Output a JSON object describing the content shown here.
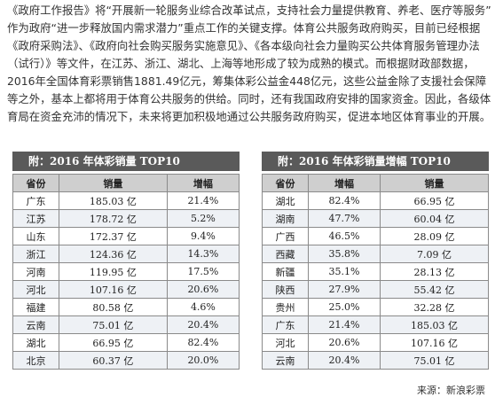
{
  "paragraph": "《政府工作报告》将“开展新一轮服务业综合改革试点，支持社会力量提供教育、养老、医疗等服务”作为政府“进一步释放国内需求潜力”重点工作的关键支撑。体育公共服务政府购买，目前已经根据《政府采购法》、《政府向社会购买服务实施意见》、《各本级向社会力量购买公共体育服务管理办法（试行）》等文件，在江苏、浙江、湖北、上海等地形成了较为成熟的模式。而根据财政部数据，2016年全国体育彩票销售1881.49亿元，筹集体彩公益金448亿元，这些公益金除了支援社会保障等之外，基本上都将用于体育公共服务的供给。同时，还有我国政府安排的国家资金。因此，各级体育局在资金充沛的情况下，未来将更加积极地通过公共服务政府购买，促进本地区体育事业的开展。",
  "tables": [
    {
      "title": "附：2016 年体彩销量 TOP10",
      "headers": [
        "省份",
        "销量",
        "增幅"
      ],
      "rows": [
        [
          "广东",
          "185.03 亿",
          "21.4%"
        ],
        [
          "江苏",
          "178.72 亿",
          "5.2%"
        ],
        [
          "山东",
          "172.37 亿",
          "9.4%"
        ],
        [
          "浙江",
          "124.36 亿",
          "14.3%"
        ],
        [
          "河南",
          "119.95 亿",
          "17.5%"
        ],
        [
          "河北",
          "107.16 亿",
          "20.6%"
        ],
        [
          "福建",
          "80.58 亿",
          "4.6%"
        ],
        [
          "云南",
          "75.01 亿",
          "20.4%"
        ],
        [
          "湖北",
          "66.95 亿",
          "82.4%"
        ],
        [
          "北京",
          "60.37 亿",
          "20.0%"
        ]
      ]
    },
    {
      "title": "附：2016 年体彩销量增幅 TOP10",
      "headers": [
        "省份",
        "增幅",
        "销量"
      ],
      "rows": [
        [
          "湖北",
          "82.4%",
          "66.95 亿"
        ],
        [
          "湖南",
          "47.7%",
          "60.04 亿"
        ],
        [
          "广西",
          "46.5%",
          "28.09 亿"
        ],
        [
          "西藏",
          "35.8%",
          "7.09 亿"
        ],
        [
          "新疆",
          "35.1%",
          "28.13 亿"
        ],
        [
          "陕西",
          "27.9%",
          "55.42 亿"
        ],
        [
          "贵州",
          "25.0%",
          "32.28 亿"
        ],
        [
          "广东",
          "21.4%",
          "185.03 亿"
        ],
        [
          "河北",
          "20.6%",
          "107.16 亿"
        ],
        [
          "云南",
          "20.4%",
          "75.01 亿"
        ]
      ]
    }
  ],
  "source": "来源：新浪彩票"
}
